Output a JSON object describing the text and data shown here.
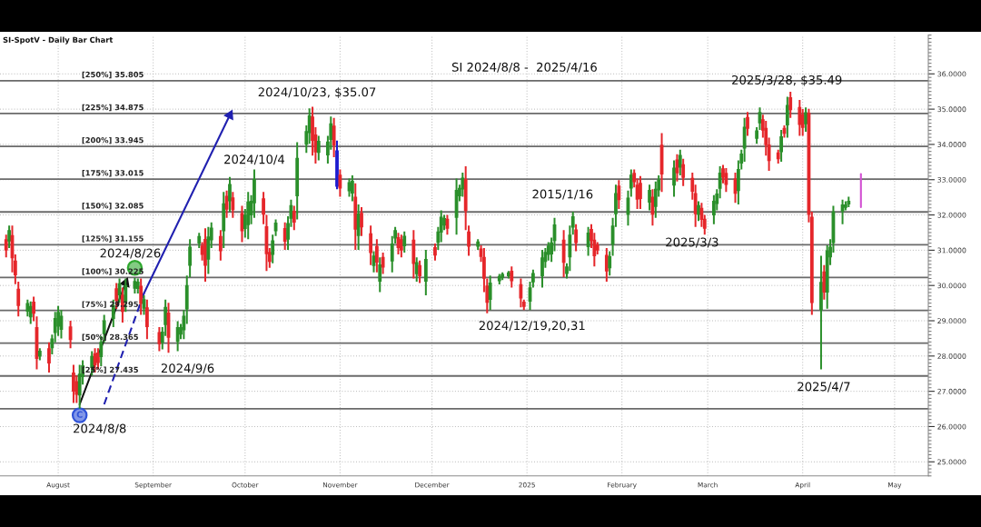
{
  "chart_data": {
    "type": "candlestick",
    "title": "SI-SpotV - Daily Bar Chart",
    "subtitle": "SI 2024/8/8 -  2025/4/16",
    "x": [
      "2024-07-15",
      "2024-07-16",
      "2024-07-17",
      "2024-07-18",
      "2024-07-19",
      "2024-07-22",
      "2024-07-23",
      "2024-07-24",
      "2024-07-25",
      "2024-07-26",
      "2024-07-29",
      "2024-07-30",
      "2024-07-31",
      "2024-08-01",
      "2024-08-02",
      "2024-08-05",
      "2024-08-06",
      "2024-08-07",
      "2024-08-08",
      "2024-08-09",
      "2024-08-12",
      "2024-08-13",
      "2024-08-14",
      "2024-08-15",
      "2024-08-16",
      "2024-08-19",
      "2024-08-20",
      "2024-08-21",
      "2024-08-22",
      "2024-08-23",
      "2024-08-26",
      "2024-08-27",
      "2024-08-28",
      "2024-08-29",
      "2024-08-30",
      "2024-09-03",
      "2024-09-04",
      "2024-09-05",
      "2024-09-06",
      "2024-09-09",
      "2024-09-10",
      "2024-09-11",
      "2024-09-12",
      "2024-09-13",
      "2024-09-16",
      "2024-09-17",
      "2024-09-18",
      "2024-09-19",
      "2024-09-20",
      "2024-09-23",
      "2024-09-24",
      "2024-09-25",
      "2024-09-26",
      "2024-09-27",
      "2024-09-30",
      "2024-10-01",
      "2024-10-02",
      "2024-10-03",
      "2024-10-04",
      "2024-10-07",
      "2024-10-08",
      "2024-10-09",
      "2024-10-10",
      "2024-10-11",
      "2024-10-14",
      "2024-10-15",
      "2024-10-16",
      "2024-10-17",
      "2024-10-18",
      "2024-10-21",
      "2024-10-22",
      "2024-10-23",
      "2024-10-24",
      "2024-10-25",
      "2024-10-28",
      "2024-10-29",
      "2024-10-30",
      "2024-10-31",
      "2024-11-01",
      "2024-11-04",
      "2024-11-05",
      "2024-11-06",
      "2024-11-07",
      "2024-11-08",
      "2024-11-11",
      "2024-11-12",
      "2024-11-13",
      "2024-11-14",
      "2024-11-15",
      "2024-11-18",
      "2024-11-19",
      "2024-11-20",
      "2024-11-21",
      "2024-11-22",
      "2024-11-25",
      "2024-11-26",
      "2024-11-27",
      "2024-11-29",
      "2024-12-02",
      "2024-12-03",
      "2024-12-04",
      "2024-12-05",
      "2024-12-06",
      "2024-12-09",
      "2024-12-10",
      "2024-12-11",
      "2024-12-12",
      "2024-12-13",
      "2024-12-16",
      "2024-12-17",
      "2024-12-18",
      "2024-12-19",
      "2024-12-20",
      "2024-12-23",
      "2024-12-24",
      "2024-12-26",
      "2024-12-27",
      "2024-12-30",
      "2024-12-31",
      "2025-01-02",
      "2025-01-03",
      "2025-01-06",
      "2025-01-07",
      "2025-01-08",
      "2025-01-09",
      "2025-01-10",
      "2025-01-13",
      "2025-01-14",
      "2025-01-15",
      "2025-01-16",
      "2025-01-17",
      "2025-01-21",
      "2025-01-22",
      "2025-01-23",
      "2025-01-24",
      "2025-01-27",
      "2025-01-28",
      "2025-01-29",
      "2025-01-30",
      "2025-01-31",
      "2025-02-03",
      "2025-02-04",
      "2025-02-05",
      "2025-02-06",
      "2025-02-07",
      "2025-02-10",
      "2025-02-11",
      "2025-02-12",
      "2025-02-13",
      "2025-02-14",
      "2025-02-18",
      "2025-02-19",
      "2025-02-20",
      "2025-02-21",
      "2025-02-24",
      "2025-02-25",
      "2025-02-26",
      "2025-02-27",
      "2025-02-28",
      "2025-03-03",
      "2025-03-04",
      "2025-03-05",
      "2025-03-06",
      "2025-03-07",
      "2025-03-10",
      "2025-03-11",
      "2025-03-12",
      "2025-03-13",
      "2025-03-14",
      "2025-03-17",
      "2025-03-18",
      "2025-03-19",
      "2025-03-20",
      "2025-03-21",
      "2025-03-24",
      "2025-03-25",
      "2025-03-26",
      "2025-03-27",
      "2025-03-28",
      "2025-03-31",
      "2025-04-01",
      "2025-04-02",
      "2025-04-03",
      "2025-04-04",
      "2025-04-07",
      "2025-04-08",
      "2025-04-09",
      "2025-04-10",
      "2025-04-11",
      "2025-04-14",
      "2025-04-15",
      "2025-04-16"
    ],
    "ohlc": [
      [
        31.31,
        31.44,
        30.8,
        30.99
      ],
      [
        31.25,
        31.7,
        31.06,
        31.57
      ],
      [
        31.43,
        31.7,
        30.37,
        30.77
      ],
      [
        30.71,
        30.88,
        30.04,
        30.29
      ],
      [
        29.91,
        30.11,
        29.12,
        29.42
      ],
      [
        29.26,
        29.6,
        29.12,
        29.5
      ],
      [
        29.1,
        29.55,
        28.91,
        29.42
      ],
      [
        29.54,
        29.68,
        28.99,
        29.2
      ],
      [
        28.82,
        29.12,
        27.62,
        27.92
      ],
      [
        27.98,
        28.22,
        27.88,
        28.15
      ],
      [
        28.22,
        28.39,
        27.53,
        27.79
      ],
      [
        28.22,
        28.61,
        28.05,
        28.5
      ],
      [
        28.65,
        29.25,
        28.39,
        29.08
      ],
      [
        28.83,
        29.42,
        28.57,
        29.25
      ],
      [
        28.74,
        29.3,
        28.5,
        29.14
      ],
      [
        28.84,
        29.0,
        28.22,
        28.45
      ],
      [
        27.53,
        27.75,
        26.67,
        26.99
      ],
      [
        27.29,
        27.45,
        26.67,
        26.9
      ],
      [
        26.88,
        27.75,
        26.51,
        27.5
      ],
      [
        27.4,
        27.88,
        27.19,
        27.74
      ],
      [
        27.66,
        28.14,
        27.45,
        28.0
      ],
      [
        28.08,
        28.22,
        27.53,
        27.74
      ],
      [
        28.1,
        28.22,
        27.62,
        27.8
      ],
      [
        27.97,
        28.57,
        27.71,
        28.4
      ],
      [
        28.62,
        29.17,
        28.39,
        29.01
      ],
      [
        29.05,
        29.6,
        28.82,
        29.44
      ],
      [
        29.92,
        30.07,
        29.34,
        29.56
      ],
      [
        29.72,
        30.2,
        29.51,
        30.06
      ],
      [
        29.74,
        29.94,
        28.95,
        29.25
      ],
      [
        29.54,
        30.2,
        29.25,
        30.01
      ],
      [
        29.91,
        30.22,
        29.77,
        30.13
      ],
      [
        29.9,
        30.2,
        29.77,
        30.11
      ],
      [
        29.99,
        30.2,
        29.17,
        29.48
      ],
      [
        29.34,
        29.72,
        29.17,
        29.61
      ],
      [
        29.38,
        29.6,
        28.48,
        28.82
      ],
      [
        28.68,
        28.82,
        28.14,
        28.34
      ],
      [
        28.38,
        28.82,
        28.19,
        28.69
      ],
      [
        28.88,
        29.6,
        28.57,
        29.39
      ],
      [
        29.23,
        29.51,
        28.09,
        28.52
      ],
      [
        28.4,
        28.99,
        28.14,
        28.82
      ],
      [
        28.61,
        28.91,
        28.48,
        28.82
      ],
      [
        28.73,
        29.3,
        28.48,
        29.14
      ],
      [
        29.32,
        30.28,
        28.91,
        30.01
      ],
      [
        30.56,
        31.31,
        30.24,
        31.1
      ],
      [
        31.19,
        31.49,
        31.06,
        31.4
      ],
      [
        31.13,
        31.23,
        30.71,
        30.87
      ],
      [
        31.32,
        31.62,
        30.11,
        30.56
      ],
      [
        30.73,
        31.66,
        30.33,
        31.39
      ],
      [
        31.28,
        31.79,
        31.06,
        31.64
      ],
      [
        31.4,
        31.57,
        30.71,
        30.97
      ],
      [
        31.54,
        32.65,
        31.06,
        32.33
      ],
      [
        32.54,
        32.69,
        31.92,
        32.15
      ],
      [
        32.39,
        33.08,
        32.09,
        32.88
      ],
      [
        32.5,
        32.65,
        31.92,
        32.14
      ],
      [
        32.05,
        32.26,
        31.23,
        31.54
      ],
      [
        31.6,
        32.17,
        31.36,
        32.01
      ],
      [
        31.71,
        32.65,
        31.31,
        32.38
      ],
      [
        31.99,
        32.56,
        31.74,
        32.4
      ],
      [
        32.33,
        33.29,
        31.92,
        33.02
      ],
      [
        32.47,
        32.65,
        31.74,
        32.01
      ],
      [
        31.68,
        32.0,
        30.41,
        30.89
      ],
      [
        30.95,
        31.06,
        30.5,
        30.67
      ],
      [
        30.87,
        31.44,
        30.63,
        31.28
      ],
      [
        31.54,
        31.87,
        31.4,
        31.78
      ],
      [
        31.63,
        31.79,
        31.01,
        31.24
      ],
      [
        31.3,
        31.96,
        31.01,
        31.77
      ],
      [
        31.89,
        32.43,
        31.66,
        32.28
      ],
      [
        32.12,
        32.26,
        31.57,
        31.78
      ],
      [
        32.53,
        34.06,
        31.87,
        33.62
      ],
      [
        33.99,
        34.54,
        33.76,
        34.38
      ],
      [
        34.32,
        35.02,
        34.02,
        34.82
      ],
      [
        34.79,
        35.07,
        33.68,
        34.1
      ],
      [
        34.28,
        34.49,
        33.46,
        33.77
      ],
      [
        33.76,
        34.24,
        33.55,
        34.1
      ],
      [
        33.69,
        34.24,
        33.46,
        34.08
      ],
      [
        34.13,
        34.79,
        33.85,
        34.6
      ],
      [
        34.53,
        34.75,
        33.64,
        33.97
      ],
      [
        33.83,
        34.11,
        32.73,
        32.8
      ],
      [
        33.14,
        33.29,
        32.52,
        32.75
      ],
      [
        32.67,
        33.03,
        32.52,
        32.93
      ],
      [
        32.61,
        33.12,
        32.39,
        32.97
      ],
      [
        32.52,
        32.9,
        31.01,
        31.58
      ],
      [
        31.4,
        32.3,
        31.01,
        32.04
      ],
      [
        32.06,
        32.22,
        31.4,
        31.65
      ],
      [
        31.48,
        31.7,
        30.58,
        30.92
      ],
      [
        30.55,
        30.97,
        30.37,
        30.85
      ],
      [
        31.12,
        31.31,
        30.37,
        30.65
      ],
      [
        30.11,
        30.8,
        29.81,
        30.6
      ],
      [
        30.81,
        30.93,
        30.33,
        30.51
      ],
      [
        30.68,
        31.4,
        30.37,
        31.19
      ],
      [
        31.33,
        31.66,
        31.19,
        31.57
      ],
      [
        31.37,
        31.49,
        30.88,
        31.06
      ],
      [
        31.31,
        31.44,
        30.8,
        30.99
      ],
      [
        31.11,
        31.53,
        30.93,
        31.41
      ],
      [
        31.3,
        31.57,
        30.2,
        30.61
      ],
      [
        30.32,
        30.8,
        30.11,
        30.66
      ],
      [
        30.58,
        30.71,
        30.07,
        30.26
      ],
      [
        30.11,
        31.01,
        29.72,
        30.75
      ],
      [
        31.09,
        31.19,
        30.71,
        30.85
      ],
      [
        31.21,
        31.66,
        31.01,
        31.53
      ],
      [
        31.5,
        32.13,
        31.23,
        31.95
      ],
      [
        31.7,
        32.0,
        31.57,
        31.91
      ],
      [
        31.89,
        32.0,
        31.44,
        31.61
      ],
      [
        31.92,
        33.03,
        31.44,
        32.71
      ],
      [
        32.53,
        32.86,
        32.39,
        32.77
      ],
      [
        32.72,
        33.2,
        32.52,
        33.06
      ],
      [
        33.02,
        33.38,
        31.57,
        32.11
      ],
      [
        31.53,
        31.7,
        30.84,
        31.1
      ],
      [
        31.1,
        31.31,
        31.01,
        31.25
      ],
      [
        31.05,
        31.14,
        30.67,
        30.81
      ],
      [
        30.81,
        31.06,
        29.81,
        30.19
      ],
      [
        30.0,
        30.2,
        29.21,
        29.51
      ],
      [
        29.59,
        30.28,
        29.3,
        30.08
      ],
      [
        30.12,
        30.33,
        30.03,
        30.27
      ],
      [
        30.22,
        30.37,
        30.15,
        30.33
      ],
      [
        30.26,
        30.41,
        30.2,
        30.37
      ],
      [
        30.42,
        30.54,
        29.94,
        30.12
      ],
      [
        30.04,
        30.2,
        29.38,
        29.63
      ],
      [
        29.54,
        29.6,
        29.3,
        29.39
      ],
      [
        29.54,
        30.11,
        29.3,
        29.95
      ],
      [
        30.09,
        30.45,
        29.94,
        30.35
      ],
      [
        30.26,
        31.01,
        29.94,
        30.8
      ],
      [
        30.67,
        31.06,
        30.5,
        30.95
      ],
      [
        30.87,
        31.23,
        30.71,
        31.13
      ],
      [
        30.88,
        31.36,
        30.67,
        31.22
      ],
      [
        31.26,
        31.92,
        30.97,
        31.73
      ],
      [
        31.3,
        31.57,
        30.24,
        30.64
      ],
      [
        30.33,
        30.63,
        30.2,
        30.54
      ],
      [
        30.8,
        31.7,
        30.41,
        31.44
      ],
      [
        31.64,
        32.09,
        31.44,
        31.96
      ],
      [
        31.59,
        31.74,
        30.97,
        31.2
      ],
      [
        31.09,
        31.66,
        30.84,
        31.5
      ],
      [
        31.6,
        31.74,
        31.06,
        31.26
      ],
      [
        31.3,
        31.49,
        30.54,
        30.83
      ],
      [
        31.16,
        31.23,
        30.88,
        30.99
      ],
      [
        30.87,
        31.06,
        30.11,
        30.4
      ],
      [
        30.49,
        30.97,
        30.28,
        30.83
      ],
      [
        31.16,
        31.92,
        30.84,
        31.7
      ],
      [
        32.02,
        32.86,
        31.66,
        32.62
      ],
      [
        32.83,
        32.99,
        32.17,
        32.42
      ],
      [
        32.0,
        32.69,
        31.7,
        32.49
      ],
      [
        32.75,
        33.29,
        32.52,
        33.14
      ],
      [
        33.19,
        33.29,
        32.78,
        32.93
      ],
      [
        32.86,
        33.03,
        32.17,
        32.43
      ],
      [
        32.91,
        33.1,
        32.17,
        32.45
      ],
      [
        32.35,
        32.86,
        32.13,
        32.71
      ],
      [
        32.52,
        32.73,
        31.7,
        32.01
      ],
      [
        32.23,
        32.95,
        31.92,
        32.74
      ],
      [
        32.7,
        33.12,
        32.52,
        33.0
      ],
      [
        33.99,
        34.32,
        32.65,
        33.15
      ],
      [
        32.83,
        33.55,
        32.52,
        33.34
      ],
      [
        33.57,
        33.72,
        32.95,
        33.18
      ],
      [
        33.34,
        33.85,
        33.12,
        33.7
      ],
      [
        33.44,
        33.59,
        32.82,
        33.05
      ],
      [
        33.05,
        33.2,
        32.43,
        32.66
      ],
      [
        32.62,
        32.86,
        31.66,
        32.02
      ],
      [
        32.0,
        32.39,
        31.83,
        32.28
      ],
      [
        32.2,
        32.34,
        31.66,
        31.86
      ],
      [
        31.89,
        32.0,
        31.44,
        31.61
      ],
      [
        31.99,
        32.56,
        31.74,
        32.4
      ],
      [
        32.31,
        32.73,
        32.13,
        32.61
      ],
      [
        32.74,
        33.38,
        32.47,
        33.2
      ],
      [
        33.32,
        33.42,
        32.9,
        33.06
      ],
      [
        33.19,
        33.33,
        32.65,
        32.85
      ],
      [
        33.03,
        33.2,
        32.34,
        32.6
      ],
      [
        32.68,
        33.55,
        32.3,
        33.3
      ],
      [
        33.46,
        33.85,
        33.29,
        33.74
      ],
      [
        33.88,
        34.75,
        33.51,
        34.5
      ],
      [
        34.78,
        34.92,
        34.24,
        34.44
      ],
      [
        34.16,
        34.49,
        34.02,
        34.4
      ],
      [
        34.6,
        35.05,
        34.41,
        34.92
      ],
      [
        34.71,
        34.84,
        34.19,
        34.39
      ],
      [
        34.47,
        34.67,
        33.68,
        33.98
      ],
      [
        34.0,
        34.19,
        33.25,
        33.53
      ],
      [
        33.77,
        33.85,
        33.46,
        33.58
      ],
      [
        33.78,
        34.41,
        33.51,
        34.23
      ],
      [
        34.47,
        34.54,
        34.19,
        34.3
      ],
      [
        34.54,
        35.35,
        34.19,
        35.12
      ],
      [
        35.34,
        35.49,
        34.75,
        34.97
      ],
      [
        35.06,
        35.26,
        34.24,
        34.55
      ],
      [
        34.85,
        35.0,
        34.24,
        34.47
      ],
      [
        34.57,
        35.05,
        34.36,
        34.91
      ],
      [
        34.9,
        35.01,
        31.79,
        32.0
      ],
      [
        31.95,
        32.09,
        29.17,
        29.5
      ],
      [
        29.3,
        30.84,
        27.62,
        30.1
      ],
      [
        30.4,
        30.58,
        29.6,
        29.8
      ],
      [
        29.8,
        31.14,
        29.34,
        31.0
      ],
      [
        30.8,
        31.31,
        30.58,
        31.1
      ],
      [
        31.2,
        32.26,
        30.93,
        32.1
      ],
      [
        32.1,
        32.43,
        31.74,
        32.3
      ],
      [
        32.2,
        32.39,
        32.13,
        32.3
      ],
      [
        32.3,
        32.52,
        32.22,
        32.4
      ]
    ],
    "colors": [
      "#e5262a",
      "#2a8f2a",
      "#e5262a",
      "#e5262a",
      "#e5262a",
      "#2a8f2a",
      "#2a8f2a",
      "#e5262a",
      "#e5262a",
      "#2a8f2a",
      "#e5262a",
      "#2a8f2a",
      "#2a8f2a",
      "#2a8f2a",
      "#2a8f2a",
      "#e5262a",
      "#e5262a",
      "#e5262a",
      "#2a8f2a",
      "#2a8f2a",
      "#2a8f2a",
      "#e5262a",
      "#e5262a",
      "#2a8f2a",
      "#2a8f2a",
      "#2a8f2a",
      "#e5262a",
      "#2a8f2a",
      "#e5262a",
      "#2a8f2a",
      "#2a8f2a",
      "#2a8f2a",
      "#e5262a",
      "#2a8f2a",
      "#e5262a",
      "#e5262a",
      "#2a8f2a",
      "#2a8f2a",
      "#e5262a",
      "#2a8f2a",
      "#2a8f2a",
      "#2a8f2a",
      "#2a8f2a",
      "#2a8f2a",
      "#2a8f2a",
      "#e5262a",
      "#e5262a",
      "#2a8f2a",
      "#2a8f2a",
      "#e5262a",
      "#2a8f2a",
      "#e5262a",
      "#2a8f2a",
      "#e5262a",
      "#e5262a",
      "#2a8f2a",
      "#2a8f2a",
      "#2a8f2a",
      "#2a8f2a",
      "#e5262a",
      "#e5262a",
      "#e5262a",
      "#2a8f2a",
      "#2a8f2a",
      "#e5262a",
      "#2a8f2a",
      "#2a8f2a",
      "#e5262a",
      "#2a8f2a",
      "#2a8f2a",
      "#2a8f2a",
      "#e5262a",
      "#e5262a",
      "#2a8f2a",
      "#2a8f2a",
      "#2a8f2a",
      "#e5262a",
      "#1c1cd0",
      "#e5262a",
      "#2a8f2a",
      "#2a8f2a",
      "#e5262a",
      "#2a8f2a",
      "#e5262a",
      "#e5262a",
      "#2a8f2a",
      "#e5262a",
      "#2a8f2a",
      "#e5262a",
      "#2a8f2a",
      "#2a8f2a",
      "#e5262a",
      "#e5262a",
      "#2a8f2a",
      "#e5262a",
      "#2a8f2a",
      "#e5262a",
      "#2a8f2a",
      "#e5262a",
      "#2a8f2a",
      "#2a8f2a",
      "#2a8f2a",
      "#e5262a",
      "#2a8f2a",
      "#2a8f2a",
      "#2a8f2a",
      "#e5262a",
      "#e5262a",
      "#2a8f2a",
      "#e5262a",
      "#e5262a",
      "#e5262a",
      "#2a8f2a",
      "#2a8f2a",
      "#2a8f2a",
      "#2a8f2a",
      "#e5262a",
      "#e5262a",
      "#e5262a",
      "#2a8f2a",
      "#2a8f2a",
      "#2a8f2a",
      "#2a8f2a",
      "#2a8f2a",
      "#2a8f2a",
      "#2a8f2a",
      "#e5262a",
      "#2a8f2a",
      "#2a8f2a",
      "#2a8f2a",
      "#e5262a",
      "#2a8f2a",
      "#e5262a",
      "#e5262a",
      "#e5262a",
      "#e5262a",
      "#2a8f2a",
      "#2a8f2a",
      "#2a8f2a",
      "#e5262a",
      "#2a8f2a",
      "#2a8f2a",
      "#e5262a",
      "#e5262a",
      "#e5262a",
      "#2a8f2a",
      "#e5262a",
      "#2a8f2a",
      "#2a8f2a",
      "#e5262a",
      "#2a8f2a",
      "#e5262a",
      "#2a8f2a",
      "#e5262a",
      "#e5262a",
      "#e5262a",
      "#2a8f2a",
      "#e5262a",
      "#e5262a",
      "#2a8f2a",
      "#2a8f2a",
      "#2a8f2a",
      "#e5262a",
      "#e5262a",
      "#e5262a",
      "#2a8f2a",
      "#2a8f2a",
      "#2a8f2a",
      "#e5262a",
      "#2a8f2a",
      "#2a8f2a",
      "#e5262a",
      "#e5262a",
      "#e5262a",
      "#e5262a",
      "#2a8f2a",
      "#e5262a",
      "#2a8f2a",
      "#e5262a",
      "#e5262a",
      "#e5262a",
      "#2a8f2a",
      "#e5262a",
      "#e5262a",
      "#2a8f2a",
      "#e5262a",
      "#2a8f2a",
      "#2a8f2a",
      "#2a8f2a",
      "#2a8f2a",
      "#2a8f2a",
      "#2a8f2a"
    ],
    "series": [
      {
        "type": "line",
        "x": [
          "2024-08-08",
          "2024-08-23"
        ],
        "values": [
          26.63,
          30.07
        ],
        "color": "#111111",
        "marker": "triangle"
      },
      {
        "type": "line",
        "x": [
          "2024-08-16",
          "2024-08-29"
        ],
        "values": [
          26.63,
          29.78
        ],
        "color": "#2020b0",
        "line_style": "dashed"
      },
      {
        "type": "line",
        "x": [
          "2024-08-29",
          "2024-09-26"
        ],
        "values": [
          29.78,
          34.83
        ],
        "color": "#2020b0",
        "marker": "triangle"
      },
      {
        "type": "line",
        "x": [
          "2025-04-20",
          "2025-04-20"
        ],
        "values": [
          33.16,
          32.22
        ],
        "color": "#d24fd2"
      },
      {
        "type": "scatter",
        "x": [
          "2024-08-08",
          "2024-08-26"
        ],
        "values": [
          26.32,
          30.5
        ],
        "colors": [
          "#2f52d8",
          "#2fa82f"
        ],
        "marker": "circle",
        "value_labels": [
          "C",
          null
        ]
      }
    ],
    "xlim": [
      "2024-07-13",
      "2025-05-12"
    ],
    "xticks": [
      {
        "value": "2024-08-01",
        "label": "August"
      },
      {
        "value": "2024-09-01",
        "label": "September"
      },
      {
        "value": "2024-10-01",
        "label": "October"
      },
      {
        "value": "2024-11-01",
        "label": "November"
      },
      {
        "value": "2024-12-01",
        "label": "December"
      },
      {
        "value": "2025-01-01",
        "label": "2025"
      },
      {
        "value": "2025-02-01",
        "label": "February"
      },
      {
        "value": "2025-03-01",
        "label": "March"
      },
      {
        "value": "2025-04-01",
        "label": "April"
      },
      {
        "value": "2025-05-01",
        "label": "May"
      }
    ],
    "ylim": [
      24.6,
      37.1
    ],
    "yticks": [
      {
        "value": 25,
        "label": "25.0000"
      },
      {
        "value": 26,
        "label": "26.0000"
      },
      {
        "value": 27,
        "label": "27.0000"
      },
      {
        "value": 28,
        "label": "28.0000"
      },
      {
        "value": 29,
        "label": "29.0000"
      },
      {
        "value": 30,
        "label": "30.0000"
      },
      {
        "value": 31,
        "label": "31.0000"
      },
      {
        "value": 32,
        "label": "32.0000"
      },
      {
        "value": 33,
        "label": "33.0000"
      },
      {
        "value": 34,
        "label": "34.0000"
      },
      {
        "value": 35,
        "label": "35.0000"
      },
      {
        "value": 36,
        "label": "36.0000"
      }
    ],
    "ref_lines": [
      {
        "axis": "y",
        "value": 35.805,
        "label": "[250%] 35.805",
        "color": "#6a6a6a"
      },
      {
        "axis": "y",
        "value": 34.875,
        "label": "[225%] 34.875",
        "color": "#6a6a6a"
      },
      {
        "axis": "y",
        "value": 33.945,
        "label": "[200%] 33.945",
        "color": "#6a6a6a"
      },
      {
        "axis": "y",
        "value": 33.015,
        "label": "[175%] 33.015",
        "color": "#6a6a6a"
      },
      {
        "axis": "y",
        "value": 32.085,
        "label": "[150%] 32.085",
        "color": "#6a6a6a"
      },
      {
        "axis": "y",
        "value": 31.155,
        "label": "[125%] 31.155",
        "color": "#6a6a6a"
      },
      {
        "axis": "y",
        "value": 30.225,
        "label": "[100%] 30.225",
        "color": "#6a6a6a"
      },
      {
        "axis": "y",
        "value": 29.295,
        "label": "[75%] 29.295",
        "color": "#6a6a6a"
      },
      {
        "axis": "y",
        "value": 28.365,
        "label": "[50%] 28.365",
        "color": "#6a6a6a"
      },
      {
        "axis": "y",
        "value": 27.435,
        "label": "[25%] 27.435",
        "color": "#6a6a6a"
      },
      {
        "axis": "y",
        "value": 26.505,
        "color": "#6a6a6a"
      }
    ],
    "annotations": [
      {
        "text": "2024/10/23, $35.07",
        "x": "2024-10-23",
        "y": 35.07
      },
      {
        "text": "2024/10/4",
        "x": "2024-10-04",
        "y": 33.29
      },
      {
        "text": "2024/8/26",
        "x": "2024-08-26",
        "y": 30.22
      },
      {
        "text": "2024/9/6",
        "x": "2024-09-06",
        "y": 28.09
      },
      {
        "text": "2024/8/8",
        "x": "2024-08-08",
        "y": 26.51
      },
      "2015/1/16",
      {
        "text": "2024/12/19,20,31",
        "x": "2024-12-31",
        "y": 29.3
      },
      {
        "text": "2025/3/3",
        "x": "2025-03-03",
        "y": 31.74
      },
      {
        "text": "2025/3/28, $35.49",
        "x": "2025-03-28",
        "y": 35.49
      },
      {
        "text": "2025/4/7",
        "x": "2025-04-07",
        "y": 27.62
      }
    ],
    "grid": true
  }
}
